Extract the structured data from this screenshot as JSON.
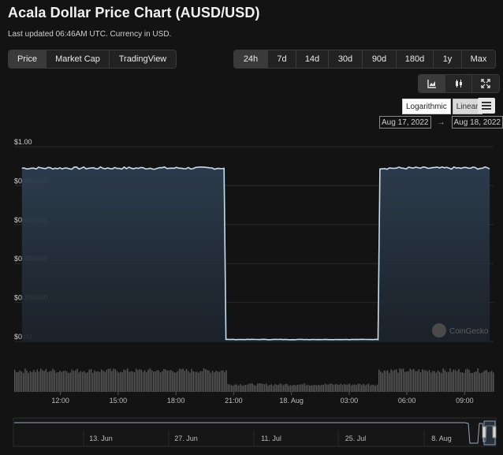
{
  "header": {
    "title": "Acala Dollar Price Chart (AUSD/USD)",
    "subtitle": "Last updated 06:46AM UTC. Currency in USD."
  },
  "tabs": [
    {
      "label": "Price",
      "active": true
    },
    {
      "label": "Market Cap",
      "active": false
    },
    {
      "label": "TradingView",
      "active": false
    }
  ],
  "ranges": [
    {
      "label": "24h",
      "active": true
    },
    {
      "label": "7d",
      "active": false
    },
    {
      "label": "14d",
      "active": false
    },
    {
      "label": "30d",
      "active": false
    },
    {
      "label": "90d",
      "active": false
    },
    {
      "label": "180d",
      "active": false
    },
    {
      "label": "1y",
      "active": false
    },
    {
      "label": "Max",
      "active": false
    }
  ],
  "tools": [
    "line-chart-icon",
    "candlestick-icon",
    "fullscreen-icon"
  ],
  "scale": {
    "logarithmic": "Logarithmic",
    "linear": "Linear"
  },
  "date_range": {
    "from": "Aug 17, 2022",
    "arrow": "→",
    "to": "Aug 18, 2022"
  },
  "watermark": "CoinGecko",
  "colors": {
    "line": "#c6dcf0",
    "fill_top": "#2d3d4f",
    "volume": "#5a5a5a",
    "background": "#131313"
  },
  "chart_data": {
    "type": "area",
    "y_ticks": [
      "$1.00",
      "$0.800000",
      "$0.600000",
      "$0.400000",
      "$0.200000",
      "$0.00"
    ],
    "ylim": [
      0,
      1
    ],
    "x_ticks": [
      "12:00",
      "15:00",
      "18:00",
      "21:00",
      "18. Aug",
      "03:00",
      "06:00",
      "09:00"
    ],
    "x_hours": [
      0,
      12,
      15,
      18,
      21,
      24,
      27,
      30,
      33,
      34.5
    ],
    "price_segments": [
      {
        "from_hour": 10,
        "to_hour": 20.5,
        "value": 0.89
      },
      {
        "from_hour": 20.6,
        "to_hour": 28.5,
        "value": 0.01
      },
      {
        "from_hour": 28.6,
        "to_hour": 34.3,
        "value": 0.89
      }
    ],
    "navigator_ticks": [
      "13. Jun",
      "27. Jun",
      "11. Jul",
      "25. Jul",
      "8. Aug"
    ]
  }
}
